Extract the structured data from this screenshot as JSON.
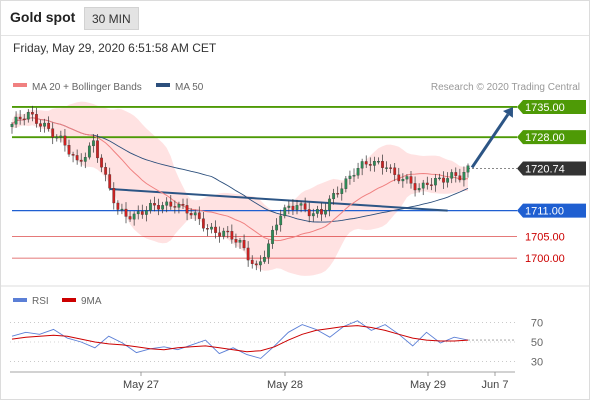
{
  "header": {
    "title": "Gold spot",
    "interval": "30 MIN"
  },
  "timestamp": "Friday, May 29, 2020 6:51:58 AM CET",
  "legend": {
    "ma20": "MA 20 + Bollinger Bands",
    "ma50": "MA 50",
    "credit": "Research © 2020 Trading Central"
  },
  "rsi_legend": {
    "rsi": "RSI",
    "ma9": "9MA"
  },
  "colors": {
    "resistance": "#4e9a06",
    "support": "#1f5fd1",
    "pivot": "#333333",
    "secondary": "#cc0000",
    "ma20": "#f08080",
    "bands": "#ffd6d6",
    "ma50": "#2c4f7c",
    "bull": "#2e8b57",
    "bear": "#cc2222",
    "rsi": "#5b7fd6",
    "rsi_ma": "#cc0000",
    "trend": "#2c5585"
  },
  "chart_data": [
    {
      "type": "candlestick",
      "title": "Gold spot",
      "x_ticks": [
        "May 27",
        "May 28",
        "May 29",
        "Jun 7"
      ],
      "price_range": [
        1694,
        1738
      ],
      "levels": [
        {
          "value": 1735.0,
          "label": "1735.00",
          "kind": "resistance"
        },
        {
          "value": 1728.0,
          "label": "1728.00",
          "kind": "resistance"
        },
        {
          "value": 1720.74,
          "label": "1720.74",
          "kind": "pivot"
        },
        {
          "value": 1711.0,
          "label": "1711.00",
          "kind": "support"
        },
        {
          "value": 1705.0,
          "label": "1705.00",
          "kind": "secondary"
        },
        {
          "value": 1700.0,
          "label": "1700.00",
          "kind": "secondary"
        }
      ],
      "close_anchors": [
        [
          0,
          1731
        ],
        [
          4,
          1733
        ],
        [
          8,
          1731
        ],
        [
          12,
          1727
        ],
        [
          16,
          1722
        ],
        [
          20,
          1727
        ],
        [
          23,
          1718
        ],
        [
          26,
          1711
        ],
        [
          30,
          1710
        ],
        [
          36,
          1712
        ],
        [
          40,
          1713
        ],
        [
          44,
          1710
        ],
        [
          48,
          1707
        ],
        [
          52,
          1706
        ],
        [
          56,
          1703
        ],
        [
          60,
          1698
        ],
        [
          63,
          1703
        ],
        [
          66,
          1710
        ],
        [
          70,
          1713
        ],
        [
          74,
          1710
        ],
        [
          76,
          1710
        ],
        [
          80,
          1716
        ],
        [
          84,
          1720
        ],
        [
          88,
          1722
        ],
        [
          92,
          1722
        ],
        [
          94,
          1719
        ],
        [
          96,
          1718
        ],
        [
          100,
          1716
        ],
        [
          102,
          1718
        ],
        [
          106,
          1718
        ],
        [
          110,
          1719
        ],
        [
          112,
          1721
        ]
      ],
      "series": [
        {
          "name": "MA 20 + Bollinger Bands",
          "type": "line+band"
        },
        {
          "name": "MA 50",
          "type": "line"
        }
      ],
      "trend_line": {
        "from": [
          24,
          1716
        ],
        "to": [
          107,
          1711
        ]
      },
      "projection": {
        "from": [
          113,
          1721
        ],
        "to": [
          124,
          1735
        ]
      }
    },
    {
      "type": "line",
      "title": "RSI",
      "y_ticks": [
        70,
        50,
        30
      ],
      "ylim": [
        20,
        80
      ],
      "series": [
        {
          "name": "RSI",
          "values": [
            56,
            60,
            58,
            63,
            54,
            50,
            44,
            56,
            49,
            39,
            43,
            45,
            42,
            47,
            52,
            38,
            44,
            37,
            33,
            46,
            60,
            68,
            63,
            55,
            66,
            72,
            62,
            68,
            58,
            46,
            60,
            49,
            55,
            52
          ]
        },
        {
          "name": "9MA",
          "values": [
            53,
            55,
            56,
            57,
            56,
            53,
            50,
            48,
            47,
            45,
            43,
            42,
            44,
            45,
            46,
            44,
            42,
            40,
            41,
            45,
            52,
            58,
            62,
            64,
            66,
            67,
            65,
            62,
            58,
            54,
            52,
            51,
            51,
            52
          ]
        }
      ]
    }
  ]
}
